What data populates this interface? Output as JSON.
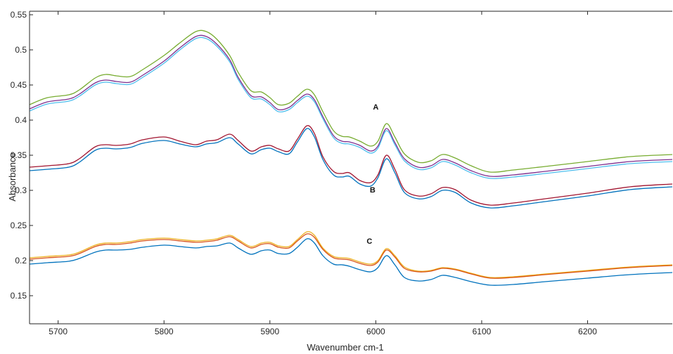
{
  "chart_data": {
    "type": "line",
    "title": "",
    "xlabel": "Wavenumber cm-1",
    "ylabel": "Absorbance",
    "xlim": [
      5673,
      6280
    ],
    "ylim": [
      0.11,
      0.555
    ],
    "xticks": [
      5700,
      5800,
      5900,
      6000,
      6100,
      6200
    ],
    "yticks": [
      0.15,
      0.2,
      0.25,
      0.3,
      0.35,
      0.4,
      0.45,
      0.5,
      0.55
    ],
    "grid": false,
    "legend": "none",
    "x": [
      5673,
      5690,
      5710,
      5720,
      5735,
      5745,
      5755,
      5768,
      5780,
      5800,
      5815,
      5830,
      5840,
      5850,
      5862,
      5870,
      5882,
      5892,
      5900,
      5908,
      5918,
      5926,
      5935,
      5942,
      5950,
      5960,
      5968,
      5975,
      5985,
      5995,
      6002,
      6010,
      6018,
      6027,
      6040,
      6052,
      6063,
      6075,
      6090,
      6108,
      6130,
      6160,
      6200,
      6240,
      6280
    ],
    "series": [
      {
        "color": "#77ac30",
        "values": [
          0.422,
          0.432,
          0.436,
          0.443,
          0.46,
          0.465,
          0.463,
          0.462,
          0.472,
          0.492,
          0.51,
          0.526,
          0.526,
          0.515,
          0.492,
          0.468,
          0.442,
          0.44,
          0.432,
          0.422,
          0.424,
          0.434,
          0.444,
          0.436,
          0.412,
          0.385,
          0.377,
          0.376,
          0.37,
          0.363,
          0.37,
          0.395,
          0.376,
          0.352,
          0.34,
          0.342,
          0.351,
          0.346,
          0.335,
          0.326,
          0.329,
          0.334,
          0.341,
          0.348,
          0.351
        ]
      },
      {
        "color": "#7e2f8e",
        "values": [
          0.416,
          0.426,
          0.43,
          0.437,
          0.453,
          0.457,
          0.455,
          0.454,
          0.464,
          0.484,
          0.503,
          0.519,
          0.519,
          0.508,
          0.486,
          0.461,
          0.435,
          0.433,
          0.425,
          0.415,
          0.418,
          0.428,
          0.437,
          0.429,
          0.405,
          0.378,
          0.37,
          0.369,
          0.364,
          0.356,
          0.363,
          0.388,
          0.368,
          0.345,
          0.333,
          0.335,
          0.344,
          0.339,
          0.328,
          0.32,
          0.322,
          0.327,
          0.334,
          0.341,
          0.344
        ]
      },
      {
        "color": "#4dbeee",
        "values": [
          0.413,
          0.423,
          0.427,
          0.434,
          0.45,
          0.454,
          0.452,
          0.451,
          0.461,
          0.481,
          0.5,
          0.516,
          0.516,
          0.505,
          0.483,
          0.458,
          0.432,
          0.43,
          0.422,
          0.412,
          0.415,
          0.425,
          0.434,
          0.426,
          0.402,
          0.375,
          0.367,
          0.366,
          0.361,
          0.353,
          0.36,
          0.385,
          0.365,
          0.342,
          0.33,
          0.332,
          0.341,
          0.336,
          0.325,
          0.317,
          0.319,
          0.324,
          0.331,
          0.338,
          0.341
        ]
      },
      {
        "color": "#a2142f",
        "values": [
          0.333,
          0.335,
          0.338,
          0.345,
          0.362,
          0.365,
          0.364,
          0.366,
          0.372,
          0.376,
          0.37,
          0.365,
          0.37,
          0.372,
          0.38,
          0.371,
          0.356,
          0.362,
          0.364,
          0.359,
          0.356,
          0.373,
          0.392,
          0.381,
          0.348,
          0.327,
          0.324,
          0.325,
          0.314,
          0.311,
          0.322,
          0.35,
          0.33,
          0.301,
          0.292,
          0.295,
          0.304,
          0.301,
          0.286,
          0.279,
          0.282,
          0.288,
          0.296,
          0.305,
          0.309
        ]
      },
      {
        "color": "#0072bd",
        "values": [
          0.328,
          0.33,
          0.333,
          0.34,
          0.357,
          0.36,
          0.359,
          0.361,
          0.367,
          0.371,
          0.366,
          0.362,
          0.366,
          0.368,
          0.375,
          0.366,
          0.352,
          0.358,
          0.36,
          0.355,
          0.352,
          0.369,
          0.388,
          0.376,
          0.344,
          0.322,
          0.319,
          0.32,
          0.309,
          0.306,
          0.318,
          0.345,
          0.325,
          0.297,
          0.288,
          0.291,
          0.3,
          0.297,
          0.282,
          0.275,
          0.278,
          0.284,
          0.292,
          0.301,
          0.305
        ]
      },
      {
        "color": "#edb120",
        "values": [
          0.204,
          0.206,
          0.208,
          0.212,
          0.222,
          0.225,
          0.225,
          0.227,
          0.23,
          0.232,
          0.23,
          0.228,
          0.229,
          0.231,
          0.236,
          0.23,
          0.22,
          0.225,
          0.226,
          0.221,
          0.22,
          0.23,
          0.241,
          0.236,
          0.218,
          0.206,
          0.204,
          0.203,
          0.198,
          0.195,
          0.2,
          0.217,
          0.207,
          0.191,
          0.185,
          0.186,
          0.19,
          0.188,
          0.182,
          0.176,
          0.177,
          0.181,
          0.186,
          0.191,
          0.194
        ]
      },
      {
        "color": "#d95319",
        "values": [
          0.202,
          0.204,
          0.206,
          0.21,
          0.22,
          0.223,
          0.223,
          0.225,
          0.228,
          0.23,
          0.228,
          0.226,
          0.227,
          0.229,
          0.234,
          0.228,
          0.218,
          0.223,
          0.224,
          0.219,
          0.218,
          0.228,
          0.238,
          0.233,
          0.216,
          0.204,
          0.202,
          0.201,
          0.196,
          0.193,
          0.198,
          0.215,
          0.205,
          0.189,
          0.184,
          0.185,
          0.189,
          0.187,
          0.181,
          0.175,
          0.176,
          0.18,
          0.185,
          0.19,
          0.193
        ]
      },
      {
        "color": "#0072bd",
        "values": [
          0.195,
          0.197,
          0.199,
          0.203,
          0.212,
          0.215,
          0.215,
          0.216,
          0.219,
          0.222,
          0.22,
          0.218,
          0.22,
          0.221,
          0.225,
          0.218,
          0.209,
          0.214,
          0.215,
          0.21,
          0.21,
          0.219,
          0.231,
          0.225,
          0.207,
          0.195,
          0.194,
          0.192,
          0.187,
          0.184,
          0.19,
          0.207,
          0.194,
          0.176,
          0.171,
          0.173,
          0.179,
          0.176,
          0.17,
          0.165,
          0.166,
          0.17,
          0.175,
          0.18,
          0.183
        ]
      }
    ],
    "annotations": [
      {
        "text": "A",
        "x": 6000,
        "y": 0.415
      },
      {
        "text": "B",
        "x": 5997,
        "y": 0.297
      },
      {
        "text": "C",
        "x": 5994,
        "y": 0.224
      }
    ]
  }
}
